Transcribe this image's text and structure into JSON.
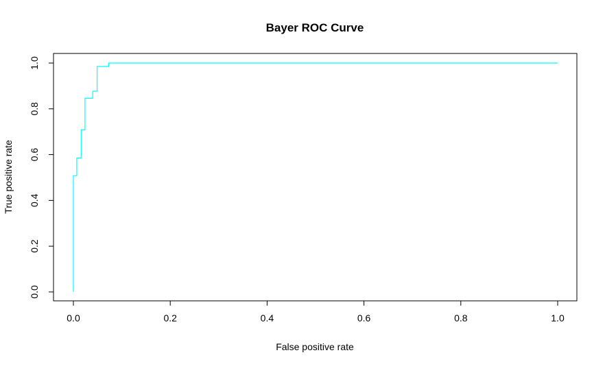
{
  "chart_data": {
    "type": "line",
    "title": "Bayer ROC Curve",
    "xlabel": "False positive rate",
    "ylabel": "True positive rate",
    "xlim": [
      0,
      1
    ],
    "ylim": [
      0,
      1
    ],
    "x_ticks": [
      "0.0",
      "0.2",
      "0.4",
      "0.6",
      "0.8",
      "1.0"
    ],
    "y_ticks": [
      "0.0",
      "0.2",
      "0.4",
      "0.6",
      "0.8",
      "1.0"
    ],
    "grid": false,
    "legend": "none",
    "series": [
      {
        "color": "#00ffff",
        "x": [
          0,
          0,
          0.007,
          0.007,
          0.016,
          0.016,
          0.024,
          0.024,
          0.04,
          0.04,
          0.049,
          0.049,
          0.073,
          0.073,
          1.0
        ],
        "y": [
          0,
          0.508,
          0.508,
          0.585,
          0.585,
          0.708,
          0.708,
          0.846,
          0.846,
          0.877,
          0.877,
          0.985,
          0.985,
          1.0,
          1.0
        ]
      }
    ]
  }
}
